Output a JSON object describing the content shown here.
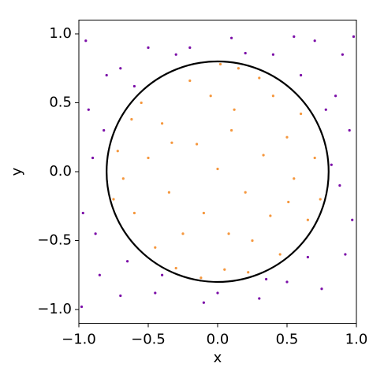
{
  "chart_data": {
    "type": "scatter",
    "xlabel": "x",
    "ylabel": "y",
    "xlim": [
      -1,
      1
    ],
    "ylim": [
      -1.1,
      1.1
    ],
    "xticks": [
      {
        "value": -1,
        "label": "−1.0"
      },
      {
        "value": -0.5,
        "label": "−0.5"
      },
      {
        "value": 0,
        "label": "0.0"
      },
      {
        "value": 0.5,
        "label": "0.5"
      },
      {
        "value": 1,
        "label": "1.0"
      }
    ],
    "yticks": [
      {
        "value": -1,
        "label": "−1.0"
      },
      {
        "value": -0.5,
        "label": "−0.5"
      },
      {
        "value": 0,
        "label": "0.0"
      },
      {
        "value": 0.5,
        "label": "0.5"
      },
      {
        "value": 1,
        "label": "1.0"
      }
    ],
    "circle": {
      "center": [
        0,
        0
      ],
      "radius": 0.8,
      "color": "#000000"
    },
    "series": [
      {
        "color": "#f5973d",
        "x": [
          0.12,
          -0.33,
          0.51,
          -0.6,
          0.05,
          0.4,
          -0.2,
          0.7,
          -0.72,
          0.25,
          -0.45,
          0.0,
          0.33,
          -0.1,
          0.6,
          -0.55,
          0.15,
          -0.3,
          0.45,
          -0.68,
          0.2,
          -0.4,
          0.55,
          -0.15,
          0.08,
          0.65,
          -0.25,
          0.3,
          -0.62,
          0.38,
          -0.05,
          0.74,
          -0.75,
          0.1,
          -0.35,
          0.5,
          -0.5,
          0.22,
          -0.12,
          0.02
        ],
        "values": [
          0.45,
          0.21,
          -0.22,
          -0.3,
          -0.71,
          0.55,
          0.66,
          0.1,
          0.15,
          -0.5,
          -0.55,
          0.02,
          0.12,
          -0.3,
          0.42,
          0.5,
          0.75,
          -0.7,
          -0.6,
          -0.05,
          -0.15,
          0.35,
          -0.05,
          0.2,
          -0.45,
          -0.35,
          -0.45,
          0.68,
          0.38,
          -0.32,
          0.55,
          -0.2,
          -0.2,
          0.3,
          -0.15,
          0.25,
          0.1,
          -0.73,
          -0.77,
          0.78
        ]
      },
      {
        "color": "#7b0ea8",
        "x": [
          -0.95,
          -0.8,
          0.9,
          0.7,
          -0.5,
          0.1,
          0.4,
          -0.2,
          0.95,
          0.88,
          0.92,
          0.75,
          0.3,
          -0.1,
          -0.45,
          -0.85,
          -0.97,
          -0.9,
          -0.93,
          -0.7,
          0.6,
          -0.65,
          0.65,
          0.98,
          -0.98,
          0.55,
          -0.3,
          0.85,
          0.97,
          0.5,
          -0.7,
          -0.88,
          -0.82,
          0.82,
          0.0,
          0.2,
          -0.6,
          0.78,
          -0.4,
          0.35
        ],
        "values": [
          0.95,
          0.7,
          0.85,
          0.95,
          0.9,
          0.97,
          0.85,
          0.9,
          0.3,
          -0.1,
          -0.6,
          -0.85,
          -0.92,
          -0.95,
          -0.88,
          -0.75,
          -0.3,
          0.1,
          0.45,
          0.75,
          0.7,
          -0.65,
          -0.62,
          0.98,
          -0.98,
          0.98,
          0.85,
          0.55,
          -0.35,
          -0.8,
          -0.9,
          -0.45,
          0.3,
          0.05,
          -0.88,
          0.86,
          0.62,
          0.45,
          -0.75,
          -0.78
        ]
      }
    ]
  }
}
